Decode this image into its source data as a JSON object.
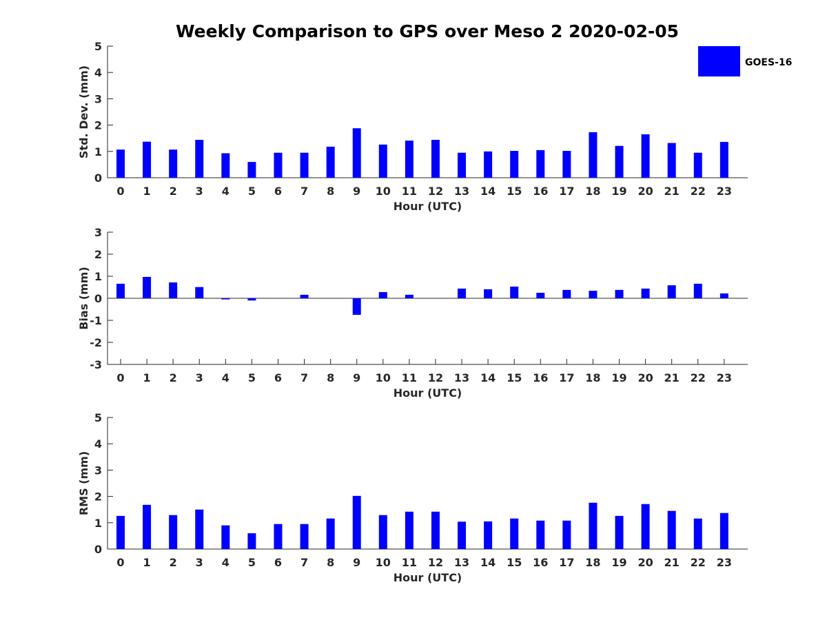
{
  "title": "Weekly Comparison to GPS over Meso 2 2020-02-05",
  "legend": {
    "label": "GOES-16",
    "color": "#0000ff",
    "placement": "top-right"
  },
  "chart_data": [
    {
      "type": "bar",
      "name": "std-dev",
      "xlabel": "Hour (UTC)",
      "ylabel": "Std. Dev. (mm)",
      "ylim": [
        0,
        5
      ],
      "yticks": [
        "0",
        "1",
        "2",
        "3",
        "4",
        "5"
      ],
      "categories": [
        "0",
        "1",
        "2",
        "3",
        "4",
        "5",
        "6",
        "7",
        "8",
        "9",
        "10",
        "11",
        "12",
        "13",
        "14",
        "15",
        "16",
        "17",
        "18",
        "19",
        "20",
        "21",
        "22",
        "23"
      ],
      "series": [
        {
          "name": "GOES-16",
          "values": [
            1.07,
            1.37,
            1.07,
            1.44,
            0.93,
            0.6,
            0.95,
            0.95,
            1.18,
            1.88,
            1.26,
            1.41,
            1.44,
            0.95,
            1.0,
            1.02,
            1.05,
            1.02,
            1.73,
            1.21,
            1.65,
            1.32,
            0.95,
            1.36
          ]
        }
      ]
    },
    {
      "type": "bar",
      "name": "bias",
      "xlabel": "Hour (UTC)",
      "ylabel": "Bias (mm)",
      "ylim": [
        -3,
        3
      ],
      "yticks": [
        "-3",
        "-2",
        "-1",
        "0",
        "1",
        "2",
        "3"
      ],
      "categories": [
        "0",
        "1",
        "2",
        "3",
        "4",
        "5",
        "6",
        "7",
        "8",
        "9",
        "10",
        "11",
        "12",
        "13",
        "14",
        "15",
        "16",
        "17",
        "18",
        "19",
        "20",
        "21",
        "22",
        "23"
      ],
      "series": [
        {
          "name": "GOES-16",
          "values": [
            0.66,
            0.97,
            0.72,
            0.51,
            -0.05,
            -0.1,
            0.0,
            0.16,
            0.0,
            -0.75,
            0.28,
            0.16,
            0.0,
            0.44,
            0.41,
            0.53,
            0.25,
            0.38,
            0.34,
            0.38,
            0.44,
            0.59,
            0.66,
            0.22
          ]
        }
      ]
    },
    {
      "type": "bar",
      "name": "rms",
      "xlabel": "Hour (UTC)",
      "ylabel": "RMS (mm)",
      "ylim": [
        0,
        5
      ],
      "yticks": [
        "0",
        "1",
        "2",
        "3",
        "4",
        "5"
      ],
      "categories": [
        "0",
        "1",
        "2",
        "3",
        "4",
        "5",
        "6",
        "7",
        "8",
        "9",
        "10",
        "11",
        "12",
        "13",
        "14",
        "15",
        "16",
        "17",
        "18",
        "19",
        "20",
        "21",
        "22",
        "23"
      ],
      "series": [
        {
          "name": "GOES-16",
          "values": [
            1.26,
            1.68,
            1.29,
            1.5,
            0.9,
            0.6,
            0.95,
            0.95,
            1.16,
            2.02,
            1.29,
            1.42,
            1.42,
            1.04,
            1.05,
            1.16,
            1.08,
            1.08,
            1.76,
            1.26,
            1.71,
            1.45,
            1.16,
            1.37
          ]
        }
      ]
    }
  ]
}
